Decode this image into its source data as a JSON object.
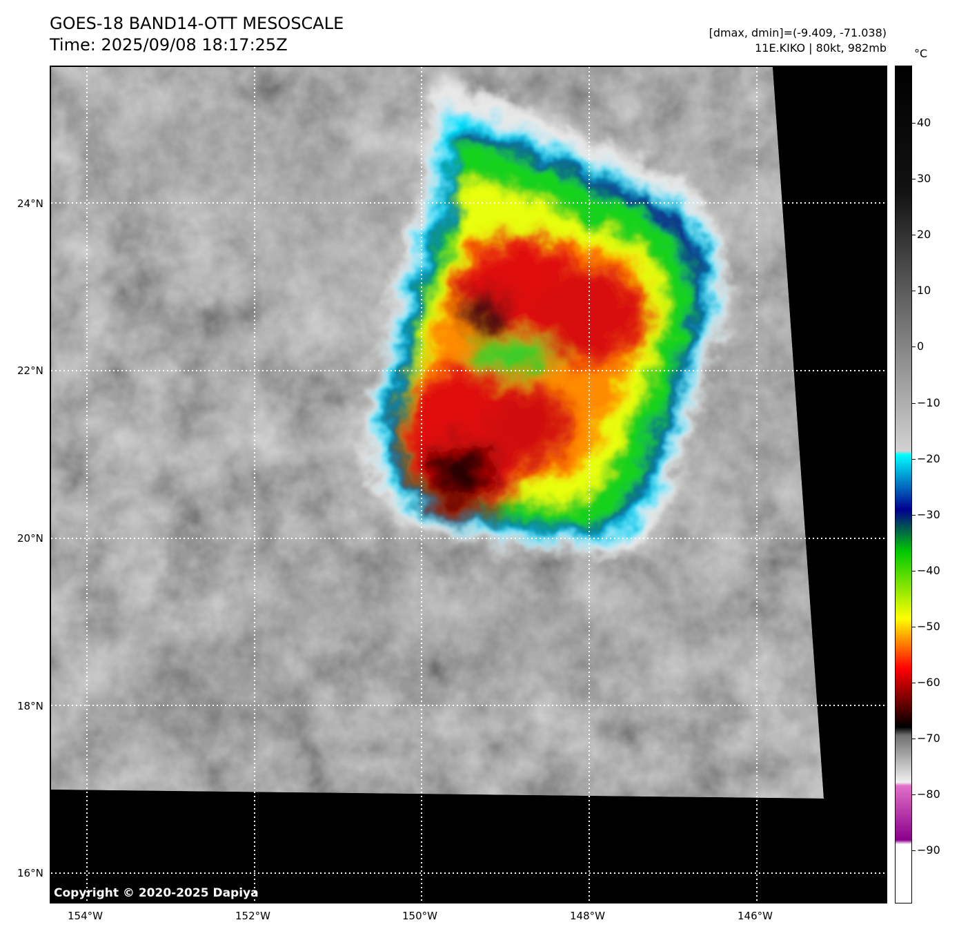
{
  "header": {
    "title": "GOES-18 BAND14-OTT MESOSCALE",
    "time": "Time: 2025/09/08 18:17:25Z",
    "stats": "[dmax, dmin]=(-9.409, -71.038)",
    "storm": "11E.KIKO | 80kt, 982mb"
  },
  "colorbar": {
    "unit": "°C",
    "ticks": [
      "40",
      "30",
      "20",
      "10",
      "0",
      "−10",
      "−20",
      "−30",
      "−40",
      "−50",
      "−60",
      "−70",
      "−80",
      "−90"
    ],
    "range": [
      -100,
      50
    ]
  },
  "map": {
    "lat_labels": [
      "24°N",
      "22°N",
      "20°N",
      "18°N",
      "16°N"
    ],
    "lon_labels": [
      "154°W",
      "152°W",
      "150°W",
      "148°W",
      "146°W"
    ],
    "copyright": "Copyright © 2020-2025 Dapiya"
  }
}
